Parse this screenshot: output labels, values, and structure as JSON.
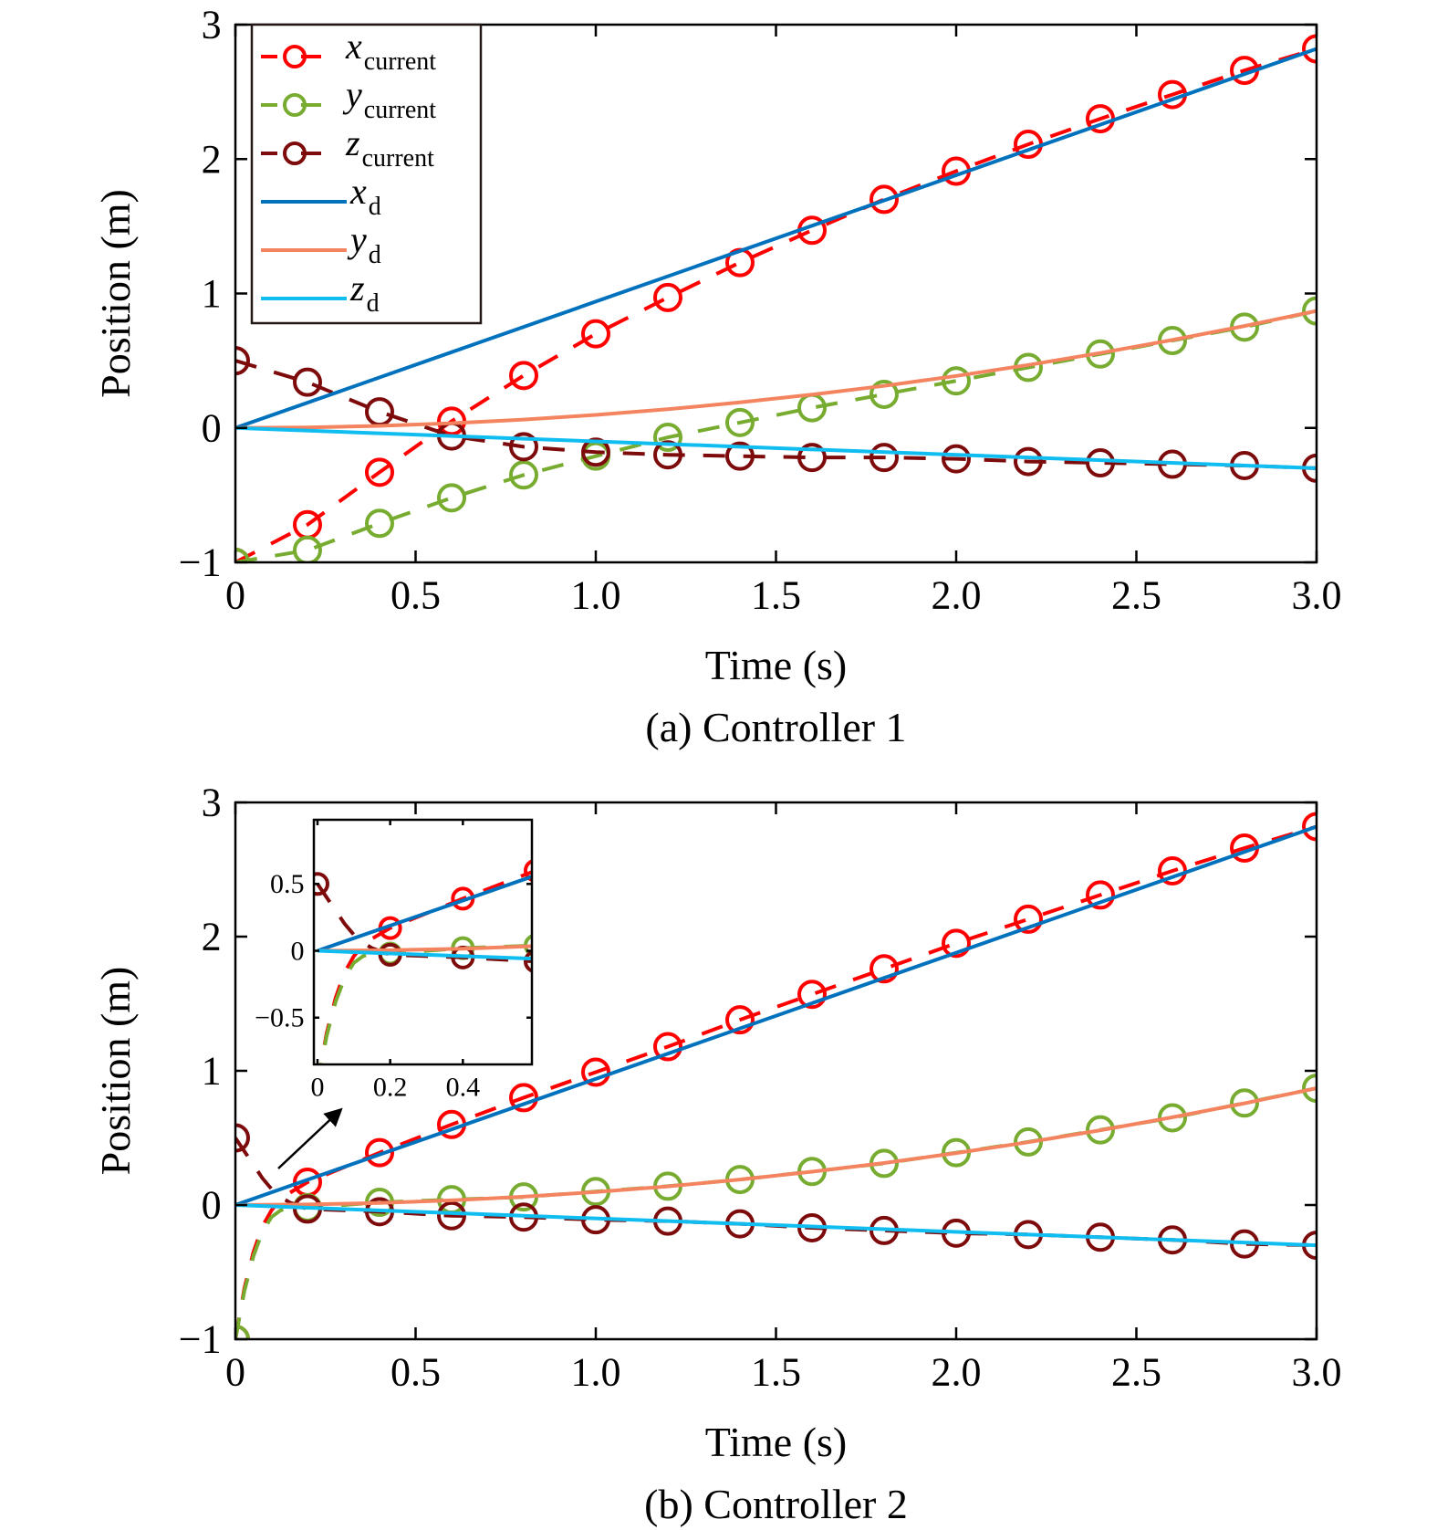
{
  "colors": {
    "x_current": "#ff0000",
    "y_current": "#77ac30",
    "z_current": "#7e0b0b",
    "x_d": "#0072bd",
    "y_d": "#f4845f",
    "z_d": "#10bdf0"
  },
  "legend": [
    {
      "key": "x_current",
      "var": "x",
      "sub": "current",
      "style": "dashed-marker"
    },
    {
      "key": "y_current",
      "var": "y",
      "sub": "current",
      "style": "dashed-marker"
    },
    {
      "key": "z_current",
      "var": "z",
      "sub": "current",
      "style": "dashed-marker"
    },
    {
      "key": "x_d",
      "var": "x",
      "sub": "d",
      "style": "solid"
    },
    {
      "key": "y_d",
      "var": "y",
      "sub": "d",
      "style": "solid"
    },
    {
      "key": "z_d",
      "var": "z",
      "sub": "d",
      "style": "solid"
    }
  ],
  "chart_data": [
    {
      "type": "line",
      "caption": "(a) Controller 1",
      "xlabel": "Time (s)",
      "ylabel": "Position (m)",
      "xlim": [
        0,
        3
      ],
      "ylim": [
        -1,
        3
      ],
      "xticks": [
        0,
        0.5,
        1.0,
        1.5,
        2.0,
        2.5,
        3.0
      ],
      "xticklabels": [
        "0",
        "0.5",
        "1.0",
        "1.5",
        "2.0",
        "2.5",
        "3.0"
      ],
      "yticks": [
        -1,
        0,
        1,
        2,
        3
      ],
      "yticklabels": [
        "−1",
        "0",
        "1",
        "2",
        "3"
      ],
      "legend_position": "top-left",
      "series": [
        {
          "key": "x_d",
          "name": "x_d",
          "x": [
            0,
            3
          ],
          "values": [
            0,
            2.82
          ],
          "markers": false
        },
        {
          "key": "y_d",
          "name": "y_d",
          "x": [
            0,
            0.2,
            0.4,
            0.6,
            0.8,
            1.0,
            1.2,
            1.4,
            1.6,
            1.8,
            2.0,
            2.2,
            2.4,
            2.6,
            2.8,
            3.0
          ],
          "values": [
            0,
            0.004,
            0.015,
            0.035,
            0.062,
            0.097,
            0.139,
            0.19,
            0.248,
            0.313,
            0.387,
            0.468,
            0.557,
            0.654,
            0.758,
            0.87
          ],
          "markers": false
        },
        {
          "key": "z_d",
          "name": "z_d",
          "x": [
            0,
            3
          ],
          "values": [
            0,
            -0.3
          ],
          "markers": false
        },
        {
          "key": "x_current",
          "name": "x_current",
          "x": [
            0,
            0.2,
            0.4,
            0.6,
            0.8,
            1.0,
            1.2,
            1.4,
            1.6,
            1.8,
            2.0,
            2.2,
            2.4,
            2.6,
            2.8,
            3.0
          ],
          "values": [
            -1,
            -0.72,
            -0.33,
            0.05,
            0.39,
            0.7,
            0.97,
            1.23,
            1.47,
            1.7,
            1.91,
            2.11,
            2.3,
            2.48,
            2.66,
            2.82
          ],
          "markers": true
        },
        {
          "key": "y_current",
          "name": "y_current",
          "x": [
            0,
            0.2,
            0.4,
            0.6,
            0.8,
            1.0,
            1.2,
            1.4,
            1.6,
            1.8,
            2.0,
            2.2,
            2.4,
            2.6,
            2.8,
            3.0
          ],
          "values": [
            -1,
            -0.91,
            -0.71,
            -0.52,
            -0.35,
            -0.21,
            -0.07,
            0.04,
            0.15,
            0.25,
            0.35,
            0.45,
            0.55,
            0.65,
            0.75,
            0.87
          ],
          "markers": true
        },
        {
          "key": "z_current",
          "name": "z_current",
          "x": [
            0,
            0.2,
            0.4,
            0.6,
            0.8,
            1.0,
            1.2,
            1.4,
            1.6,
            1.8,
            2.0,
            2.2,
            2.4,
            2.6,
            2.8,
            3.0
          ],
          "values": [
            0.5,
            0.34,
            0.12,
            -0.06,
            -0.14,
            -0.18,
            -0.2,
            -0.21,
            -0.22,
            -0.22,
            -0.23,
            -0.25,
            -0.26,
            -0.27,
            -0.28,
            -0.3
          ],
          "markers": true
        }
      ]
    },
    {
      "type": "line",
      "caption": "(b) Controller 2",
      "xlabel": "Time (s)",
      "ylabel": "Position (m)",
      "xlim": [
        0,
        3
      ],
      "ylim": [
        -1,
        3
      ],
      "xticks": [
        0,
        0.5,
        1.0,
        1.5,
        2.0,
        2.5,
        3.0
      ],
      "xticklabels": [
        "0",
        "0.5",
        "1.0",
        "1.5",
        "2.0",
        "2.5",
        "3.0"
      ],
      "yticks": [
        -1,
        0,
        1,
        2,
        3
      ],
      "yticklabels": [
        "−1",
        "0",
        "1",
        "2",
        "3"
      ],
      "series": [
        {
          "key": "x_d",
          "name": "x_d",
          "x": [
            0,
            3
          ],
          "values": [
            0,
            2.82
          ],
          "markers": false
        },
        {
          "key": "y_d",
          "name": "y_d",
          "x": [
            0,
            0.2,
            0.4,
            0.6,
            0.8,
            1.0,
            1.2,
            1.4,
            1.6,
            1.8,
            2.0,
            2.2,
            2.4,
            2.6,
            2.8,
            3.0
          ],
          "values": [
            0,
            0.004,
            0.015,
            0.035,
            0.062,
            0.097,
            0.139,
            0.19,
            0.248,
            0.313,
            0.387,
            0.468,
            0.557,
            0.654,
            0.758,
            0.87
          ],
          "markers": false
        },
        {
          "key": "z_d",
          "name": "z_d",
          "x": [
            0,
            3
          ],
          "values": [
            0,
            -0.3
          ],
          "markers": false
        },
        {
          "key": "x_current",
          "name": "x_current",
          "x": [
            0,
            0.025,
            0.05,
            0.075,
            0.1,
            0.125,
            0.15,
            0.2,
            0.4,
            0.6,
            0.8,
            1.0,
            1.2,
            1.4,
            1.6,
            1.8,
            2.0,
            2.2,
            2.4,
            2.6,
            2.8,
            3.0
          ],
          "values": [
            -1,
            -0.62,
            -0.35,
            -0.16,
            -0.04,
            0.04,
            0.09,
            0.17,
            0.39,
            0.6,
            0.8,
            0.99,
            1.18,
            1.38,
            1.57,
            1.76,
            1.95,
            2.13,
            2.31,
            2.49,
            2.66,
            2.82
          ],
          "markers": true
        },
        {
          "key": "y_current",
          "name": "y_current",
          "x": [
            0,
            0.025,
            0.05,
            0.075,
            0.1,
            0.125,
            0.15,
            0.2,
            0.4,
            0.6,
            0.8,
            1.0,
            1.2,
            1.4,
            1.6,
            1.8,
            2.0,
            2.2,
            2.4,
            2.6,
            2.8,
            3.0
          ],
          "values": [
            -1,
            -0.64,
            -0.38,
            -0.2,
            -0.09,
            -0.04,
            -0.02,
            -0.02,
            0.02,
            0.04,
            0.06,
            0.1,
            0.14,
            0.19,
            0.25,
            0.31,
            0.39,
            0.47,
            0.56,
            0.65,
            0.76,
            0.87
          ],
          "markers": true
        },
        {
          "key": "z_current",
          "name": "z_current",
          "x": [
            0,
            0.025,
            0.05,
            0.075,
            0.1,
            0.125,
            0.15,
            0.2,
            0.4,
            0.6,
            0.8,
            1.0,
            1.2,
            1.4,
            1.6,
            1.8,
            2.0,
            2.2,
            2.4,
            2.6,
            2.8,
            3.0
          ],
          "values": [
            0.5,
            0.4,
            0.3,
            0.2,
            0.12,
            0.06,
            0.02,
            -0.03,
            -0.05,
            -0.08,
            -0.09,
            -0.11,
            -0.12,
            -0.14,
            -0.17,
            -0.19,
            -0.21,
            -0.22,
            -0.24,
            -0.26,
            -0.29,
            -0.3
          ],
          "markers": true
        }
      ],
      "inset": {
        "xlim": [
          -0.01,
          0.59
        ],
        "ylim": [
          -0.85,
          0.98
        ],
        "xticks": [
          0,
          0.2,
          0.4
        ],
        "xticklabels": [
          "0",
          "0.2",
          "0.4"
        ],
        "yticks": [
          0.5,
          0,
          -0.5
        ],
        "yticklabels": [
          "0.5",
          "0",
          "−0.5"
        ]
      }
    }
  ]
}
